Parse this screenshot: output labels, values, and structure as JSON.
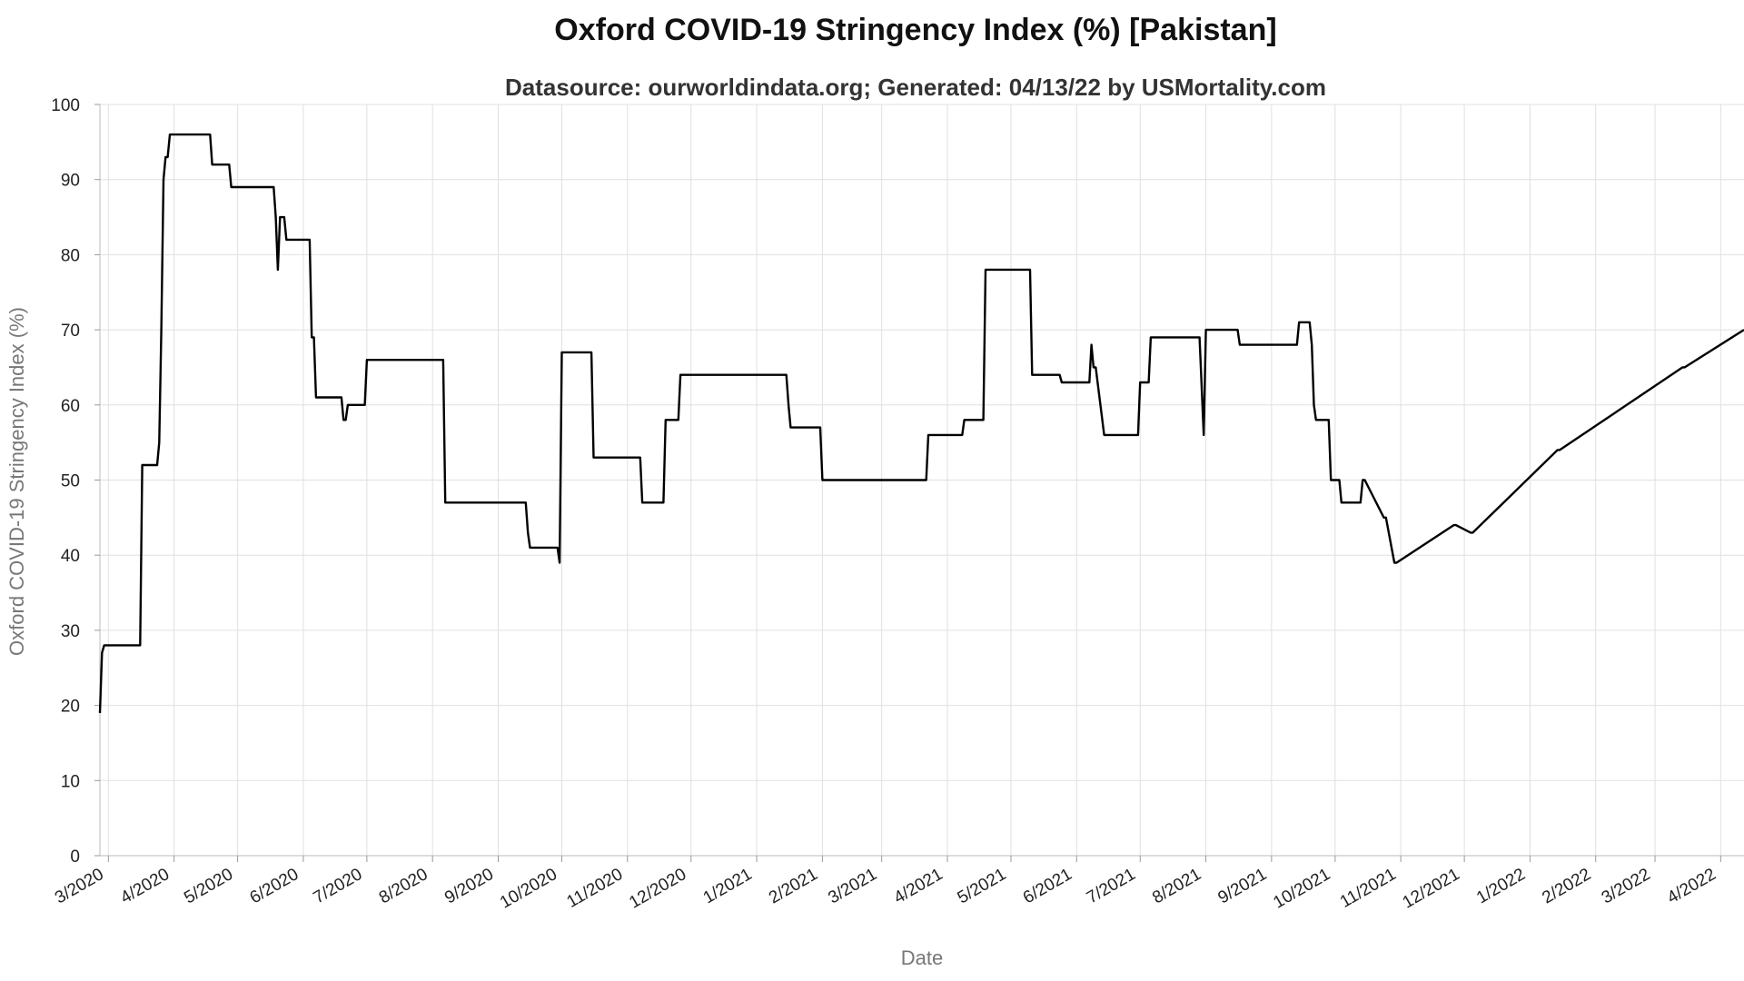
{
  "chart_data": {
    "type": "line",
    "title": "Oxford COVID-19 Stringency Index (%) [Pakistan]",
    "subtitle": "Datasource: ourworldindata.org; Generated: 04/13/22 by USMortality.com",
    "xlabel": "Date",
    "ylabel": "Oxford COVID-19 Stringency Index (%)",
    "ylim": [
      0,
      100
    ],
    "yticks": [
      0,
      10,
      20,
      30,
      40,
      50,
      60,
      70,
      80,
      90,
      100
    ],
    "xtick_labels": [
      "3/2020",
      "4/2020",
      "5/2020",
      "6/2020",
      "7/2020",
      "8/2020",
      "9/2020",
      "10/2020",
      "11/2020",
      "12/2020",
      "1/2021",
      "2/2021",
      "3/2021",
      "4/2021",
      "5/2021",
      "6/2021",
      "7/2021",
      "8/2021",
      "9/2021",
      "10/2021",
      "11/2021",
      "12/2021",
      "1/2022",
      "2/2022",
      "3/2022",
      "4/2022"
    ],
    "xtick_dates": [
      "2020-03-01",
      "2020-04-01",
      "2020-05-01",
      "2020-06-01",
      "2020-07-01",
      "2020-08-01",
      "2020-09-01",
      "2020-10-01",
      "2020-11-01",
      "2020-12-01",
      "2021-01-01",
      "2021-02-01",
      "2021-03-01",
      "2021-04-01",
      "2021-05-01",
      "2021-06-01",
      "2021-07-01",
      "2021-08-01",
      "2021-09-01",
      "2021-10-01",
      "2021-11-01",
      "2021-12-01",
      "2022-01-01",
      "2022-02-01",
      "2022-03-01",
      "2022-04-01"
    ],
    "grid": true,
    "line_color": "#000000",
    "series": [
      {
        "x": [
          "2020-02-26",
          "2020-02-27",
          "2020-02-28",
          "2020-03-16",
          "2020-03-17",
          "2020-03-24",
          "2020-03-25",
          "2020-03-26",
          "2020-03-27",
          "2020-03-28",
          "2020-03-29",
          "2020-03-30",
          "2020-04-18",
          "2020-04-19",
          "2020-04-27",
          "2020-04-28",
          "2020-05-18",
          "2020-05-19",
          "2020-05-20",
          "2020-05-21",
          "2020-05-23",
          "2020-05-24",
          "2020-06-04",
          "2020-06-05",
          "2020-06-06",
          "2020-06-07",
          "2020-06-19",
          "2020-06-20",
          "2020-06-21",
          "2020-06-22",
          "2020-06-30",
          "2020-07-01",
          "2020-08-06",
          "2020-08-07",
          "2020-09-14",
          "2020-09-15",
          "2020-09-16",
          "2020-09-29",
          "2020-09-30",
          "2020-10-01",
          "2020-10-15",
          "2020-10-16",
          "2020-11-07",
          "2020-11-08",
          "2020-11-18",
          "2020-11-19",
          "2020-11-25",
          "2020-11-26",
          "2021-01-15",
          "2021-01-16",
          "2021-01-17",
          "2021-01-31",
          "2021-02-01",
          "2021-03-22",
          "2021-03-23",
          "2021-04-08",
          "2021-04-09",
          "2021-04-18",
          "2021-04-19",
          "2021-05-10",
          "2021-05-11",
          "2021-05-24",
          "2021-05-25",
          "2021-06-07",
          "2021-06-08",
          "2021-06-09",
          "2021-06-10",
          "2021-06-14",
          "2021-06-15",
          "2021-06-30",
          "2021-07-01",
          "2021-07-05",
          "2021-07-06",
          "2021-07-29",
          "2021-07-31",
          "2021-08-01",
          "2021-08-02",
          "2021-08-16",
          "2021-08-17",
          "2021-09-13",
          "2021-09-14",
          "2021-09-19",
          "2021-09-20",
          "2021-09-21",
          "2021-09-22",
          "2021-09-28",
          "2021-09-29",
          "2021-10-03",
          "2021-10-04",
          "2021-10-13",
          "2021-10-14",
          "2021-10-15",
          "2021-10-24",
          "2021-10-25",
          "2021-10-29",
          "2021-10-30",
          "2021-11-26",
          "2021-11-27",
          "2021-12-04",
          "2021-12-05",
          "2022-01-14",
          "2022-01-15",
          "2022-03-14",
          "2022-03-15",
          "2022-04-12"
        ],
        "values": [
          19,
          27,
          28,
          28,
          52,
          52,
          55,
          70,
          90,
          93,
          93,
          96,
          96,
          92,
          92,
          89,
          89,
          85,
          78,
          85,
          85,
          82,
          82,
          69,
          69,
          61,
          61,
          58,
          58,
          60,
          60,
          66,
          66,
          47,
          47,
          43,
          41,
          41,
          39,
          67,
          67,
          53,
          53,
          47,
          47,
          58,
          58,
          64,
          64,
          60,
          57,
          57,
          50,
          50,
          56,
          56,
          58,
          58,
          78,
          78,
          64,
          64,
          63,
          63,
          68,
          65,
          65,
          56,
          56,
          56,
          63,
          63,
          69,
          69,
          56,
          70,
          70,
          70,
          68,
          68,
          71,
          71,
          68,
          60,
          58,
          58,
          50,
          50,
          47,
          47,
          50,
          50,
          45,
          45,
          39,
          39,
          44,
          44,
          43,
          43,
          54,
          54,
          65,
          65,
          70
        ]
      }
    ]
  }
}
